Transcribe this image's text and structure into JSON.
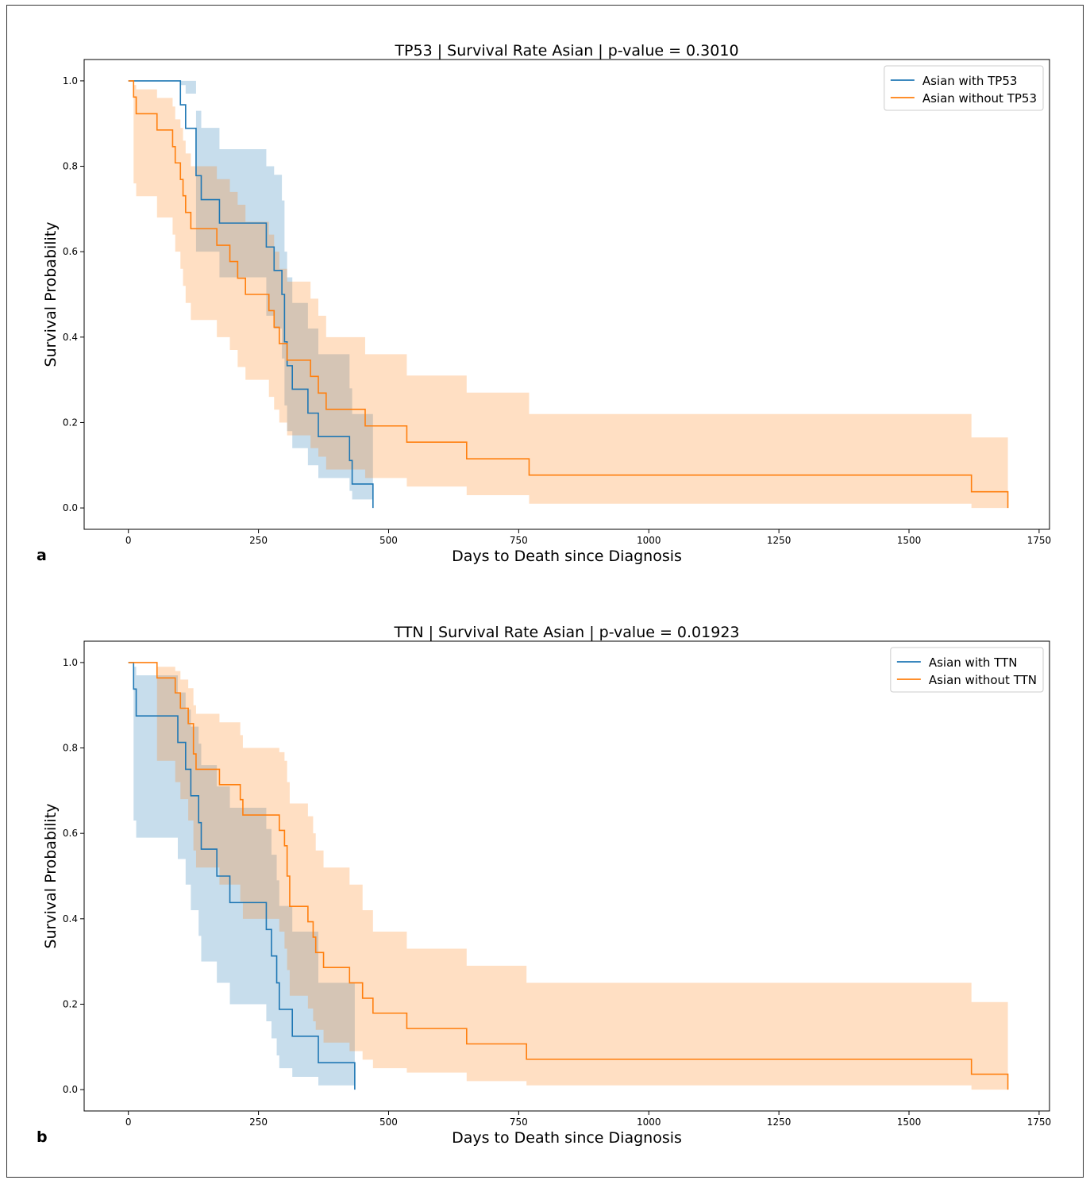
{
  "panel_labels": [
    "a",
    "b"
  ],
  "chart_data": [
    {
      "type": "line",
      "title": "TP53 | Survival Rate Asian | p-value = 0.3010",
      "xlabel": "Days to Death since Diagnosis",
      "ylabel": "Survival Probability",
      "xlim": [
        -85,
        1770
      ],
      "ylim": [
        -0.05,
        1.05
      ],
      "xticks": [
        0,
        250,
        500,
        750,
        1000,
        1250,
        1500,
        1750
      ],
      "yticks": [
        0.0,
        0.2,
        0.4,
        0.6,
        0.8,
        1.0
      ],
      "legend_position": "top-right",
      "series": [
        {
          "name": "Asian with TP53",
          "color": "#1f77b4",
          "band_color": "#1f77b4",
          "steps": [
            [
              0,
              1.0
            ],
            [
              100,
              0.944
            ],
            [
              110,
              0.889
            ],
            [
              130,
              0.778
            ],
            [
              140,
              0.722
            ],
            [
              175,
              0.667
            ],
            [
              265,
              0.611
            ],
            [
              280,
              0.556
            ],
            [
              295,
              0.5
            ],
            [
              300,
              0.389
            ],
            [
              305,
              0.333
            ],
            [
              315,
              0.278
            ],
            [
              345,
              0.222
            ],
            [
              365,
              0.167
            ],
            [
              425,
              0.111
            ],
            [
              430,
              0.056
            ],
            [
              470,
              0.0
            ]
          ],
          "lower": [
            [
              0,
              1.0
            ],
            [
              100,
              1.0
            ],
            [
              110,
              1.0
            ],
            [
              130,
              0.6
            ],
            [
              140,
              0.6
            ],
            [
              175,
              0.54
            ],
            [
              265,
              0.45
            ],
            [
              280,
              0.42
            ],
            [
              295,
              0.35
            ],
            [
              300,
              0.24
            ],
            [
              305,
              0.18
            ],
            [
              315,
              0.14
            ],
            [
              345,
              0.1
            ],
            [
              365,
              0.07
            ],
            [
              425,
              0.04
            ],
            [
              430,
              0.02
            ],
            [
              470,
              0.0
            ]
          ],
          "upper": [
            [
              0,
              1.0
            ],
            [
              100,
              0.99
            ],
            [
              110,
              0.97
            ],
            [
              130,
              0.93
            ],
            [
              140,
              0.89
            ],
            [
              175,
              0.84
            ],
            [
              265,
              0.8
            ],
            [
              280,
              0.78
            ],
            [
              295,
              0.72
            ],
            [
              300,
              0.6
            ],
            [
              305,
              0.54
            ],
            [
              315,
              0.48
            ],
            [
              345,
              0.42
            ],
            [
              365,
              0.36
            ],
            [
              425,
              0.28
            ],
            [
              430,
              0.22
            ],
            [
              470,
              0.22
            ]
          ]
        },
        {
          "name": "Asian without TP53",
          "color": "#ff7f0e",
          "band_color": "#ff7f0e",
          "steps": [
            [
              0,
              1.0
            ],
            [
              10,
              0.962
            ],
            [
              15,
              0.923
            ],
            [
              55,
              0.885
            ],
            [
              85,
              0.846
            ],
            [
              90,
              0.808
            ],
            [
              100,
              0.769
            ],
            [
              105,
              0.731
            ],
            [
              110,
              0.692
            ],
            [
              120,
              0.654
            ],
            [
              170,
              0.615
            ],
            [
              195,
              0.577
            ],
            [
              210,
              0.538
            ],
            [
              225,
              0.5
            ],
            [
              270,
              0.462
            ],
            [
              280,
              0.423
            ],
            [
              290,
              0.385
            ],
            [
              305,
              0.346
            ],
            [
              350,
              0.308
            ],
            [
              365,
              0.269
            ],
            [
              380,
              0.231
            ],
            [
              455,
              0.192
            ],
            [
              535,
              0.154
            ],
            [
              650,
              0.115
            ],
            [
              770,
              0.077
            ],
            [
              1620,
              0.038
            ],
            [
              1690,
              0.0
            ]
          ],
          "lower": [
            [
              0,
              1.0
            ],
            [
              10,
              0.76
            ],
            [
              15,
              0.73
            ],
            [
              55,
              0.68
            ],
            [
              85,
              0.64
            ],
            [
              90,
              0.6
            ],
            [
              100,
              0.56
            ],
            [
              105,
              0.52
            ],
            [
              110,
              0.48
            ],
            [
              120,
              0.44
            ],
            [
              170,
              0.4
            ],
            [
              195,
              0.37
            ],
            [
              210,
              0.33
            ],
            [
              225,
              0.3
            ],
            [
              270,
              0.26
            ],
            [
              280,
              0.23
            ],
            [
              290,
              0.2
            ],
            [
              305,
              0.17
            ],
            [
              350,
              0.14
            ],
            [
              365,
              0.12
            ],
            [
              380,
              0.09
            ],
            [
              455,
              0.07
            ],
            [
              535,
              0.05
            ],
            [
              650,
              0.03
            ],
            [
              770,
              0.01
            ],
            [
              1620,
              0.0
            ],
            [
              1690,
              0.0
            ]
          ],
          "upper": [
            [
              0,
              1.0
            ],
            [
              10,
              0.99
            ],
            [
              15,
              0.98
            ],
            [
              55,
              0.96
            ],
            [
              85,
              0.94
            ],
            [
              90,
              0.91
            ],
            [
              100,
              0.89
            ],
            [
              105,
              0.86
            ],
            [
              110,
              0.83
            ],
            [
              120,
              0.8
            ],
            [
              170,
              0.77
            ],
            [
              195,
              0.74
            ],
            [
              210,
              0.71
            ],
            [
              225,
              0.67
            ],
            [
              270,
              0.64
            ],
            [
              280,
              0.6
            ],
            [
              290,
              0.56
            ],
            [
              305,
              0.53
            ],
            [
              350,
              0.49
            ],
            [
              365,
              0.45
            ],
            [
              380,
              0.4
            ],
            [
              455,
              0.36
            ],
            [
              535,
              0.31
            ],
            [
              650,
              0.27
            ],
            [
              770,
              0.22
            ],
            [
              1620,
              0.165
            ],
            [
              1690,
              0.165
            ]
          ]
        }
      ]
    },
    {
      "type": "line",
      "title": "TTN | Survival Rate Asian | p-value = 0.01923",
      "xlabel": "Days to Death since Diagnosis",
      "ylabel": "Survival Probability",
      "xlim": [
        -85,
        1770
      ],
      "ylim": [
        -0.05,
        1.05
      ],
      "xticks": [
        0,
        250,
        500,
        750,
        1000,
        1250,
        1500,
        1750
      ],
      "yticks": [
        0.0,
        0.2,
        0.4,
        0.6,
        0.8,
        1.0
      ],
      "legend_position": "top-right",
      "series": [
        {
          "name": "Asian with TTN",
          "color": "#1f77b4",
          "band_color": "#1f77b4",
          "steps": [
            [
              0,
              1.0
            ],
            [
              10,
              0.938
            ],
            [
              15,
              0.875
            ],
            [
              95,
              0.813
            ],
            [
              110,
              0.75
            ],
            [
              120,
              0.688
            ],
            [
              135,
              0.625
            ],
            [
              140,
              0.563
            ],
            [
              170,
              0.5
            ],
            [
              195,
              0.438
            ],
            [
              265,
              0.375
            ],
            [
              275,
              0.313
            ],
            [
              285,
              0.25
            ],
            [
              290,
              0.188
            ],
            [
              315,
              0.125
            ],
            [
              365,
              0.063
            ],
            [
              435,
              0.0
            ]
          ],
          "lower": [
            [
              0,
              1.0
            ],
            [
              10,
              0.63
            ],
            [
              15,
              0.59
            ],
            [
              95,
              0.54
            ],
            [
              110,
              0.48
            ],
            [
              120,
              0.42
            ],
            [
              135,
              0.36
            ],
            [
              140,
              0.3
            ],
            [
              170,
              0.25
            ],
            [
              195,
              0.2
            ],
            [
              265,
              0.16
            ],
            [
              275,
              0.12
            ],
            [
              285,
              0.08
            ],
            [
              290,
              0.05
            ],
            [
              315,
              0.03
            ],
            [
              365,
              0.01
            ],
            [
              435,
              0.0
            ]
          ],
          "upper": [
            [
              0,
              1.0
            ],
            [
              10,
              0.99
            ],
            [
              15,
              0.97
            ],
            [
              95,
              0.93
            ],
            [
              110,
              0.89
            ],
            [
              120,
              0.85
            ],
            [
              135,
              0.81
            ],
            [
              140,
              0.76
            ],
            [
              170,
              0.71
            ],
            [
              195,
              0.66
            ],
            [
              265,
              0.61
            ],
            [
              275,
              0.55
            ],
            [
              285,
              0.49
            ],
            [
              290,
              0.43
            ],
            [
              315,
              0.37
            ],
            [
              365,
              0.25
            ],
            [
              435,
              0.25
            ]
          ]
        },
        {
          "name": "Asian without TTN",
          "color": "#ff7f0e",
          "band_color": "#ff7f0e",
          "steps": [
            [
              0,
              1.0
            ],
            [
              55,
              0.964
            ],
            [
              90,
              0.929
            ],
            [
              100,
              0.893
            ],
            [
              115,
              0.857
            ],
            [
              125,
              0.786
            ],
            [
              130,
              0.75
            ],
            [
              175,
              0.714
            ],
            [
              215,
              0.679
            ],
            [
              220,
              0.643
            ],
            [
              290,
              0.607
            ],
            [
              300,
              0.571
            ],
            [
              305,
              0.5
            ],
            [
              310,
              0.429
            ],
            [
              345,
              0.393
            ],
            [
              355,
              0.357
            ],
            [
              360,
              0.321
            ],
            [
              375,
              0.286
            ],
            [
              425,
              0.25
            ],
            [
              450,
              0.214
            ],
            [
              470,
              0.179
            ],
            [
              535,
              0.143
            ],
            [
              650,
              0.107
            ],
            [
              765,
              0.071
            ],
            [
              1620,
              0.036
            ],
            [
              1690,
              0.0
            ]
          ],
          "lower": [
            [
              0,
              1.0
            ],
            [
              55,
              0.77
            ],
            [
              90,
              0.72
            ],
            [
              100,
              0.68
            ],
            [
              115,
              0.63
            ],
            [
              125,
              0.56
            ],
            [
              130,
              0.52
            ],
            [
              175,
              0.48
            ],
            [
              215,
              0.44
            ],
            [
              220,
              0.4
            ],
            [
              290,
              0.37
            ],
            [
              300,
              0.33
            ],
            [
              305,
              0.28
            ],
            [
              310,
              0.22
            ],
            [
              345,
              0.19
            ],
            [
              355,
              0.16
            ],
            [
              360,
              0.14
            ],
            [
              375,
              0.11
            ],
            [
              425,
              0.09
            ],
            [
              450,
              0.07
            ],
            [
              470,
              0.05
            ],
            [
              535,
              0.04
            ],
            [
              650,
              0.02
            ],
            [
              765,
              0.01
            ],
            [
              1620,
              0.0
            ],
            [
              1690,
              0.0
            ]
          ],
          "upper": [
            [
              0,
              1.0
            ],
            [
              55,
              0.99
            ],
            [
              90,
              0.98
            ],
            [
              100,
              0.96
            ],
            [
              115,
              0.94
            ],
            [
              125,
              0.9
            ],
            [
              130,
              0.88
            ],
            [
              175,
              0.86
            ],
            [
              215,
              0.83
            ],
            [
              220,
              0.8
            ],
            [
              290,
              0.79
            ],
            [
              300,
              0.77
            ],
            [
              305,
              0.72
            ],
            [
              310,
              0.67
            ],
            [
              345,
              0.64
            ],
            [
              355,
              0.6
            ],
            [
              360,
              0.56
            ],
            [
              375,
              0.52
            ],
            [
              425,
              0.48
            ],
            [
              450,
              0.42
            ],
            [
              470,
              0.37
            ],
            [
              535,
              0.33
            ],
            [
              650,
              0.29
            ],
            [
              765,
              0.25
            ],
            [
              1620,
              0.205
            ],
            [
              1690,
              0.155
            ]
          ]
        }
      ]
    }
  ]
}
